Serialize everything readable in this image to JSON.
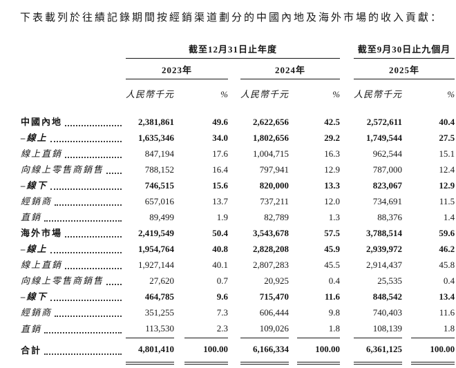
{
  "title": "下表載列於往績記錄期間按經銷渠道劃分的中國內地及海外市場的收入貢獻：",
  "table": {
    "group_headers": [
      "截至12月31日止年度",
      "截至9月30日止九個月"
    ],
    "year_headers": [
      "2023年",
      "2024年",
      "2025年"
    ],
    "unit_label": "人民幣千元",
    "percent_label": "%",
    "rows": [
      {
        "label": "中國內地",
        "v": [
          "2,381,861",
          "49.6",
          "2,622,656",
          "42.5",
          "2,572,611",
          "40.4"
        ]
      },
      {
        "label": "–線上",
        "v": [
          "1,635,346",
          "34.0",
          "1,802,656",
          "29.2",
          "1,749,544",
          "27.5"
        ]
      },
      {
        "label": "線上直銷",
        "v": [
          "847,194",
          "17.6",
          "1,004,715",
          "16.3",
          "962,544",
          "15.1"
        ]
      },
      {
        "label": "向線上零售商銷售",
        "v": [
          "788,152",
          "16.4",
          "797,941",
          "12.9",
          "787,000",
          "12.4"
        ]
      },
      {
        "label": "–線下",
        "v": [
          "746,515",
          "15.6",
          "820,000",
          "13.3",
          "823,067",
          "12.9"
        ]
      },
      {
        "label": "經銷商",
        "v": [
          "657,016",
          "13.7",
          "737,211",
          "12.0",
          "734,691",
          "11.5"
        ]
      },
      {
        "label": "直銷",
        "v": [
          "89,499",
          "1.9",
          "82,789",
          "1.3",
          "88,376",
          "1.4"
        ]
      },
      {
        "label": "海外市場",
        "v": [
          "2,419,549",
          "50.4",
          "3,543,678",
          "57.5",
          "3,788,514",
          "59.6"
        ]
      },
      {
        "label": "–線上",
        "v": [
          "1,954,764",
          "40.8",
          "2,828,208",
          "45.9",
          "2,939,972",
          "46.2"
        ]
      },
      {
        "label": "線上直銷",
        "v": [
          "1,927,144",
          "40.1",
          "2,807,283",
          "45.5",
          "2,914,437",
          "45.8"
        ]
      },
      {
        "label": "向線上零售商銷售",
        "v": [
          "27,620",
          "0.7",
          "20,925",
          "0.4",
          "25,535",
          "0.4"
        ]
      },
      {
        "label": "–線下",
        "v": [
          "464,785",
          "9.6",
          "715,470",
          "11.6",
          "848,542",
          "13.4"
        ]
      },
      {
        "label": "經銷商",
        "v": [
          "351,255",
          "7.3",
          "606,444",
          "9.8",
          "740,403",
          "11.6"
        ]
      },
      {
        "label": "直銷",
        "v": [
          "113,530",
          "2.3",
          "109,026",
          "1.8",
          "108,139",
          "1.8"
        ]
      },
      {
        "label": "合計",
        "v": [
          "4,801,410",
          "100.00",
          "6,166,334",
          "100.00",
          "6,361,125",
          "100.00"
        ]
      }
    ]
  }
}
